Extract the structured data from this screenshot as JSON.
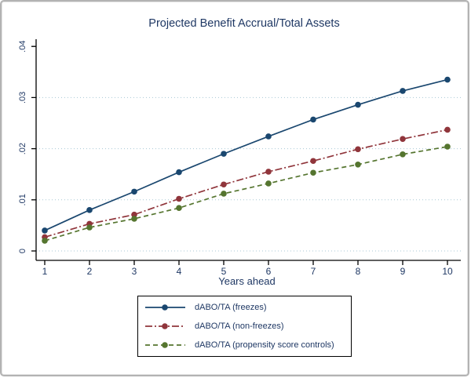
{
  "chart_data": {
    "type": "line",
    "title": "Projected Benefit Accrual/Total Assets",
    "xlabel": "Years ahead",
    "ylabel": "",
    "x": [
      1,
      2,
      3,
      4,
      5,
      6,
      7,
      8,
      9,
      10
    ],
    "xlim": [
      1,
      10
    ],
    "ylim": [
      0,
      0.04
    ],
    "yticks": [
      0,
      0.01,
      0.02,
      0.03,
      0.04
    ],
    "ytick_labels": [
      "0",
      ".01",
      ".02",
      ".03",
      ".04"
    ],
    "xtick_labels": [
      "1",
      "2",
      "3",
      "4",
      "5",
      "6",
      "7",
      "8",
      "9",
      "10"
    ],
    "grid": true,
    "gridline_values": [
      0,
      0.01,
      0.02,
      0.03
    ],
    "legend_position": "bottom",
    "series": [
      {
        "name": "dABO/TA (freezes)",
        "color": "#1a476f",
        "style": "solid",
        "marker": "circle",
        "values": [
          0.004,
          0.008,
          0.0116,
          0.0154,
          0.019,
          0.0224,
          0.0257,
          0.0286,
          0.0313,
          0.0335
        ]
      },
      {
        "name": "dABO/TA (non-freezes)",
        "color": "#90353b",
        "style": "dash-dot",
        "marker": "circle",
        "values": [
          0.0027,
          0.0053,
          0.0071,
          0.0102,
          0.013,
          0.0155,
          0.0176,
          0.0199,
          0.0219,
          0.0237
        ]
      },
      {
        "name": "dABO/TA (propensity score controls)",
        "color": "#55752f",
        "style": "dashed",
        "marker": "circle",
        "values": [
          0.002,
          0.0046,
          0.0063,
          0.0084,
          0.0112,
          0.0132,
          0.0153,
          0.0169,
          0.0189,
          0.0204
        ]
      }
    ]
  },
  "colors": {
    "text": "#1f3864",
    "grid": "#a8c8d4",
    "axis": "#000000",
    "frame_border": "#b3b3b3",
    "background": "#ffffff"
  }
}
